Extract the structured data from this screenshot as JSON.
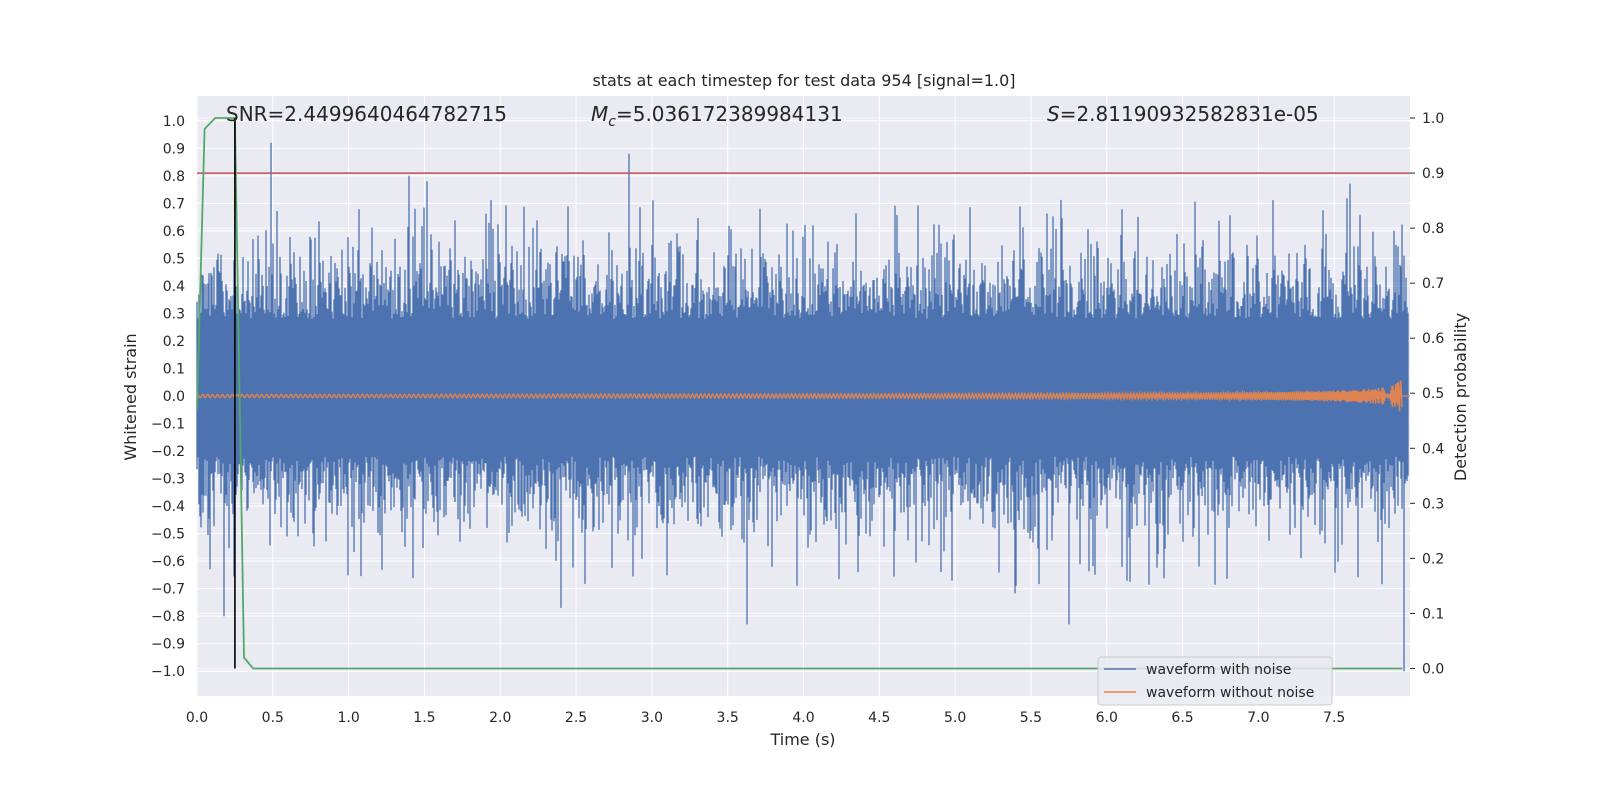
{
  "chart_data": {
    "type": "line",
    "title": "stats at each timestep for test data 954 [signal=1.0]",
    "xlabel": "Time (s)",
    "ylabel": "Whitened strain",
    "ylabel_right": "Detection probability",
    "xlim": [
      0.0,
      8.0
    ],
    "ylim": [
      -1.09,
      1.09
    ],
    "ylim_right": [
      -0.05,
      1.04
    ],
    "x_ticks": [
      0.0,
      0.5,
      1.0,
      1.5,
      2.0,
      2.5,
      3.0,
      3.5,
      4.0,
      4.5,
      5.0,
      5.5,
      6.0,
      6.5,
      7.0,
      7.5
    ],
    "x_tick_labels": [
      "0.0",
      "0.5",
      "1.0",
      "1.5",
      "2.0",
      "2.5",
      "3.0",
      "3.5",
      "4.0",
      "4.5",
      "5.0",
      "5.5",
      "6.0",
      "6.5",
      "7.0",
      "7.5"
    ],
    "y_ticks": [
      1.0,
      0.9,
      0.8,
      0.7,
      0.6,
      0.5,
      0.4,
      0.3,
      0.2,
      0.1,
      0.0,
      -0.1,
      -0.2,
      -0.3,
      -0.4,
      -0.5,
      -0.6,
      -0.7,
      -0.8,
      -0.9,
      -1.0
    ],
    "y_tick_labels": [
      "1.0",
      "0.9",
      "0.8",
      "0.7",
      "0.6",
      "0.5",
      "0.4",
      "0.3",
      "0.2",
      "0.1",
      "0.0",
      "−0.1",
      "−0.2",
      "−0.3",
      "−0.4",
      "−0.5",
      "−0.6",
      "−0.7",
      "−0.8",
      "−0.9",
      "−1.0"
    ],
    "y_ticks_right": [
      1.0,
      0.9,
      0.8,
      0.7,
      0.6,
      0.5,
      0.4,
      0.3,
      0.2,
      0.1,
      0.0
    ],
    "y_tick_labels_right": [
      "1.0",
      "0.9",
      "0.8",
      "0.7",
      "0.6",
      "0.5",
      "0.4",
      "0.3",
      "0.2",
      "0.1",
      "0.0"
    ],
    "annotations": {
      "snr": "SNR=2.4499640464782715",
      "mc_symbol": "M",
      "mc_sub": "c",
      "mc_value": "=5.036172389984131",
      "s_symbol": "S",
      "s_value": "=2.81190932582831e-05"
    },
    "threshold": {
      "axis": "right",
      "value": 0.9,
      "color": "#c44e52"
    },
    "detection_marker": {
      "x": 0.25,
      "color": "#000000"
    },
    "series": [
      {
        "name": "waveform with noise",
        "color": "#4c72b0",
        "axis": "left",
        "description_range": [
          -1.0,
          0.92
        ],
        "peak_highlights": [
          {
            "x": 0.18,
            "y": -0.8
          },
          {
            "x": 0.49,
            "y": 0.92
          },
          {
            "x": 1.4,
            "y": 0.8
          },
          {
            "x": 1.52,
            "y": 0.78
          },
          {
            "x": 2.4,
            "y": -0.77
          },
          {
            "x": 2.85,
            "y": 0.88
          },
          {
            "x": 3.63,
            "y": -0.83
          },
          {
            "x": 5.75,
            "y": -0.83
          },
          {
            "x": 7.96,
            "y": -1.0
          }
        ]
      },
      {
        "name": "waveform without noise",
        "color": "#dd8452",
        "axis": "left",
        "description": "chirp, amplitude growing from ~0.005 to ~0.05 near 7.95 s"
      },
      {
        "name": "detection probability",
        "color": "#55a868",
        "axis": "right",
        "x": [
          0.0,
          0.05,
          0.12,
          0.25,
          0.31,
          0.37,
          7.95
        ],
        "y": [
          0.47,
          0.98,
          1.0,
          1.0,
          0.02,
          0.0,
          0.0
        ]
      }
    ],
    "legend": {
      "placement": "lower-right",
      "entries": [
        "waveform with noise",
        "waveform without noise"
      ]
    },
    "colors": {
      "plot_bg": "#eaeaf2",
      "grid": "#ffffff",
      "noise": "#4c72b0",
      "clean": "#dd8452",
      "prob": "#55a868",
      "threshold": "#c44e52",
      "marker": "#000000"
    }
  }
}
